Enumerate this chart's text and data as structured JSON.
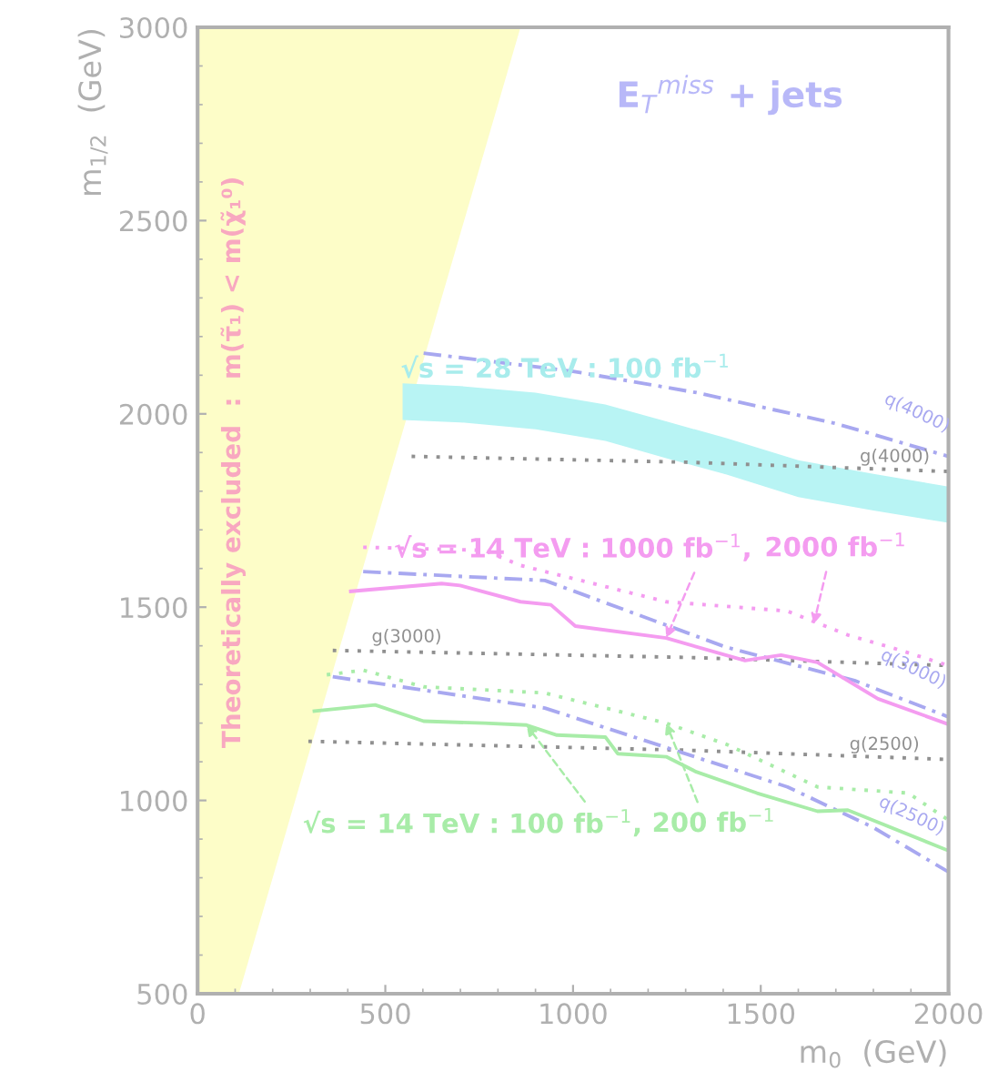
{
  "chart_data": {
    "type": "line",
    "xlabel": "m$_{0}$  (GeV)",
    "ylabel": "m$_{1/2}$  (GeV)",
    "xlim": [
      0,
      2000
    ],
    "ylim": [
      500,
      3000
    ],
    "xticks": [
      0,
      500,
      1000,
      1500,
      2000
    ],
    "yticks": [
      500,
      1000,
      1500,
      2000,
      2500,
      3000
    ],
    "series": [
      {
        "type": "area",
        "name": "Theoretically excluded  :  m(τ̃₁) < m(χ̃₁⁰)",
        "color": "#fdfdc8",
        "x": [
          0,
          110,
          860,
          0
        ],
        "values": [
          500,
          500,
          3000,
          3000
        ]
      },
      {
        "type": "area",
        "color": "#b8f4f4",
        "x": [
          546,
          700,
          900,
          1086,
          1250,
          1409,
          1600,
          1800,
          2000,
          2000,
          1800,
          1600,
          1409,
          1250,
          1086,
          900,
          700,
          546
        ],
        "values": [
          2079,
          2072,
          2055,
          2024,
          1980,
          1937,
          1880,
          1845,
          1812,
          1718,
          1750,
          1785,
          1843,
          1885,
          1930,
          1960,
          1978,
          1984
        ]
      },
      {
        "name": "g(4000)",
        "color": "#909090",
        "line_style": "dotted",
        "x": [
          570,
          1300,
          2000
        ],
        "values": [
          1890,
          1875,
          1851
        ]
      },
      {
        "name": "g(3000)",
        "color": "#909090",
        "line_style": "dotted",
        "x": [
          360,
          1300,
          2000
        ],
        "values": [
          1388,
          1370,
          1349
        ]
      },
      {
        "name": "g(2500)",
        "color": "#909090",
        "line_style": "dotted",
        "x": [
          295,
          1300,
          2000
        ],
        "values": [
          1153,
          1130,
          1106
        ]
      },
      {
        "name": "q(4000)",
        "color": "#a8a8f0",
        "line_style": "dashed",
        "x": [
          602,
          1000,
          1329,
          1700,
          2000
        ],
        "values": [
          2157,
          2110,
          2055,
          1975,
          1890
        ]
      },
      {
        "name": "q(3000)",
        "color": "#a8a8f0",
        "line_style": "dashed",
        "x": [
          441,
          925,
          1409,
          1750,
          2000
        ],
        "values": [
          1592,
          1569,
          1396,
          1310,
          1216
        ]
      },
      {
        "name": "q(2500)",
        "color": "#a8a8f0",
        "line_style": "dashed",
        "x": [
          360,
          925,
          1571,
          1800,
          2000
        ],
        "values": [
          1320,
          1239,
          1035,
          930,
          815
        ]
      },
      {
        "color": "#f49cf0",
        "line_style": "solid",
        "x": [
          408,
          650,
          699,
          860,
          941,
          1006,
          1248,
          1458,
          1554,
          1651,
          1812,
          2000
        ],
        "values": [
          1541,
          1561,
          1556,
          1514,
          1506,
          1451,
          1420,
          1362,
          1376,
          1357,
          1263,
          1197
        ]
      },
      {
        "color": "#f49cf0",
        "line_style": "dotted",
        "x": [
          441,
          763,
          860,
          1248,
          1570,
          1732,
          1850,
          2000
        ],
        "values": [
          1655,
          1647,
          1608,
          1514,
          1490,
          1428,
          1395,
          1349
        ]
      },
      {
        "color": "#a8eca8",
        "line_style": "solid",
        "x": [
          311,
          473,
          602,
          763,
          876,
          957,
          1086,
          1119,
          1248,
          1328,
          1490,
          1651,
          1732,
          2000
        ],
        "values": [
          1231,
          1247,
          1205,
          1200,
          1195,
          1169,
          1164,
          1121,
          1113,
          1074,
          1019,
          972,
          975,
          870
        ]
      },
      {
        "color": "#a8eca8",
        "line_style": "dotted",
        "x": [
          344,
          441,
          602,
          925,
          1248,
          1409,
          1651,
          1893,
          2000
        ],
        "values": [
          1325,
          1337,
          1294,
          1278,
          1200,
          1145,
          1035,
          1019,
          949
        ]
      }
    ],
    "annotations": [
      "E$_{T}$$^{miss}$ + jets",
      "√s = 28 TeV : 100 fb$^{−1}$",
      {
        "text": "√s = 14 TeV : 1000 fb$^{−1}$,",
        "x": 1248,
        "y": 1420
      },
      {
        "text": "2000 fb$^{−1}$",
        "x": 1641,
        "y": 1456
      },
      {
        "text": "√s = 14 TeV : 100 fb$^{−1}$,",
        "x": 876,
        "y": 1195
      },
      {
        "text": "200 fb$^{−1}$",
        "x": 1248,
        "y": 1200
      }
    ]
  }
}
